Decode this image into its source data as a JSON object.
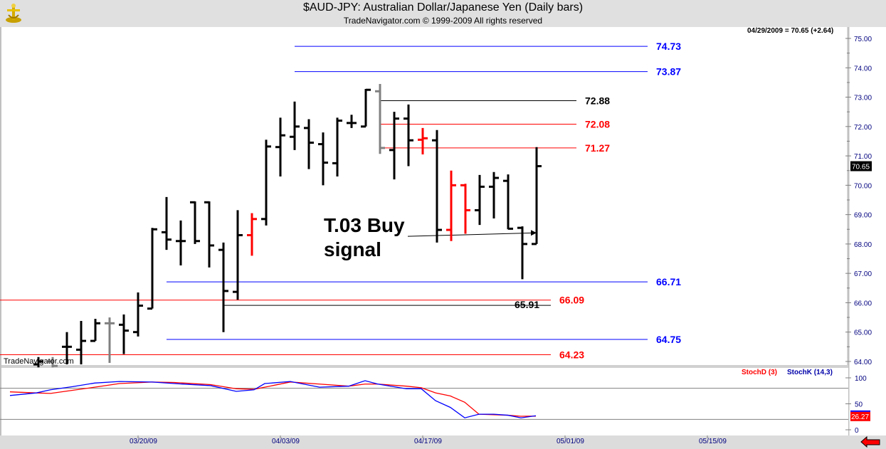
{
  "header": {
    "title": "$AUD-JPY:  Australian Dollar/Japanese Yen  (Daily bars)",
    "subtitle": "TradeNavigator.com © 1999-2009 All rights reserved",
    "last_quote": "04/29/2009 = 70.65 (+2.64)",
    "watermark": "TradeNavigator.com"
  },
  "colors": {
    "up": "#000000",
    "down_red": "#ff0000",
    "gray": "#808080",
    "blue": "#0000ff",
    "red": "#ff0000"
  },
  "chart_data": [
    {
      "type": "ohlc",
      "title": "$AUD-JPY: Australian Dollar/Japanese Yen (Daily bars)",
      "ylim": [
        64.0,
        75.0
      ],
      "yticks": [
        "64.00",
        "65.00",
        "66.00",
        "67.00",
        "68.00",
        "69.00",
        "70.00",
        "71.00",
        "72.00",
        "73.00",
        "74.00",
        "75.00"
      ],
      "x_unit": "bar index",
      "date_ticks": [
        {
          "i": 9,
          "label": "03/20/09"
        },
        {
          "i": 19,
          "label": "04/03/09"
        },
        {
          "i": 29,
          "label": "04/17/09"
        },
        {
          "i": 39,
          "label": "05/01/09"
        },
        {
          "i": 49,
          "label": "05/15/09"
        }
      ],
      "last_price_label": "70.65",
      "bars": [
        {
          "i": 2,
          "o": 63.9,
          "h": 64.15,
          "l": 63.8,
          "c": 64.0,
          "color": "black"
        },
        {
          "i": 3,
          "o": 64.0,
          "h": 64.15,
          "l": 63.8,
          "c": 63.85,
          "color": "gray"
        },
        {
          "i": 4,
          "o": 64.5,
          "h": 65.0,
          "l": 63.9,
          "c": 64.5,
          "color": "black"
        },
        {
          "i": 5,
          "o": 64.4,
          "h": 65.38,
          "l": 63.9,
          "c": 64.7,
          "color": "black"
        },
        {
          "i": 6,
          "o": 64.7,
          "h": 65.45,
          "l": 64.7,
          "c": 65.3,
          "color": "black"
        },
        {
          "i": 7,
          "o": 65.3,
          "h": 65.5,
          "l": 63.95,
          "c": 65.3,
          "color": "gray"
        },
        {
          "i": 8,
          "o": 65.25,
          "h": 65.6,
          "l": 64.25,
          "c": 65.05,
          "color": "black"
        },
        {
          "i": 9,
          "o": 65.0,
          "h": 66.35,
          "l": 64.85,
          "c": 65.9,
          "color": "black"
        },
        {
          "i": 10,
          "o": 65.8,
          "h": 68.55,
          "l": 65.8,
          "c": 68.5,
          "color": "black"
        },
        {
          "i": 11,
          "o": 68.4,
          "h": 69.6,
          "l": 67.8,
          "c": 68.15,
          "color": "black"
        },
        {
          "i": 12,
          "o": 68.1,
          "h": 68.8,
          "l": 67.27,
          "c": 68.1,
          "color": "black"
        },
        {
          "i": 13,
          "o": 69.42,
          "h": 69.45,
          "l": 68.0,
          "c": 68.1,
          "color": "black"
        },
        {
          "i": 14,
          "o": 69.42,
          "h": 69.45,
          "l": 67.2,
          "c": 67.95,
          "color": "black"
        },
        {
          "i": 15,
          "o": 67.8,
          "h": 68.05,
          "l": 65.0,
          "c": 66.4,
          "color": "black"
        },
        {
          "i": 16,
          "o": 66.37,
          "h": 69.15,
          "l": 66.1,
          "c": 68.3,
          "color": "black"
        },
        {
          "i": 17,
          "o": 68.3,
          "h": 69.05,
          "l": 67.6,
          "c": 68.85,
          "color": "red"
        },
        {
          "i": 18,
          "o": 68.85,
          "h": 71.55,
          "l": 68.63,
          "c": 71.32,
          "color": "black"
        },
        {
          "i": 19,
          "o": 71.3,
          "h": 72.3,
          "l": 70.3,
          "c": 71.7,
          "color": "black"
        },
        {
          "i": 20,
          "o": 71.65,
          "h": 72.85,
          "l": 71.2,
          "c": 72.0,
          "color": "black"
        },
        {
          "i": 21,
          "o": 71.95,
          "h": 72.25,
          "l": 70.55,
          "c": 71.45,
          "color": "black"
        },
        {
          "i": 22,
          "o": 71.4,
          "h": 71.8,
          "l": 70.0,
          "c": 70.77,
          "color": "black"
        },
        {
          "i": 23,
          "o": 70.75,
          "h": 72.3,
          "l": 70.3,
          "c": 72.2,
          "color": "black"
        },
        {
          "i": 24,
          "o": 72.12,
          "h": 72.4,
          "l": 71.95,
          "c": 72.12,
          "color": "black"
        },
        {
          "i": 25,
          "o": 72.0,
          "h": 73.28,
          "l": 72.0,
          "c": 73.25,
          "color": "black"
        },
        {
          "i": 26,
          "o": 73.2,
          "h": 73.45,
          "l": 71.07,
          "c": 71.27,
          "color": "gray"
        },
        {
          "i": 27,
          "o": 71.2,
          "h": 72.5,
          "l": 70.2,
          "c": 72.27,
          "color": "black"
        },
        {
          "i": 28,
          "o": 72.27,
          "h": 72.75,
          "l": 70.65,
          "c": 71.53,
          "color": "black"
        },
        {
          "i": 29,
          "o": 71.55,
          "h": 71.95,
          "l": 71.05,
          "c": 71.6,
          "color": "red"
        },
        {
          "i": 30,
          "o": 71.53,
          "h": 71.88,
          "l": 68.05,
          "c": 68.48,
          "color": "black"
        },
        {
          "i": 31,
          "o": 68.48,
          "h": 70.5,
          "l": 68.1,
          "c": 70.0,
          "color": "red"
        },
        {
          "i": 32,
          "o": 70.0,
          "h": 70.05,
          "l": 68.35,
          "c": 69.15,
          "color": "red"
        },
        {
          "i": 33,
          "o": 69.15,
          "h": 70.35,
          "l": 68.65,
          "c": 69.95,
          "color": "black"
        },
        {
          "i": 34,
          "o": 69.95,
          "h": 70.45,
          "l": 68.87,
          "c": 70.25,
          "color": "black"
        },
        {
          "i": 35,
          "o": 70.15,
          "h": 70.37,
          "l": 68.5,
          "c": 68.52,
          "color": "black"
        },
        {
          "i": 36,
          "o": 68.55,
          "h": 68.6,
          "l": 66.8,
          "c": 68.0,
          "color": "black"
        },
        {
          "i": 37,
          "o": 68.0,
          "h": 71.3,
          "l": 68.0,
          "c": 70.65,
          "color": "black"
        }
      ],
      "levels": [
        {
          "value": 74.73,
          "label": "74.73",
          "color": "blue",
          "from": 20,
          "to": 44.8
        },
        {
          "value": 73.87,
          "label": "73.87",
          "color": "blue",
          "from": 20,
          "to": 44.8
        },
        {
          "value": 72.88,
          "label": "72.88",
          "color": "black",
          "from": 26,
          "to": 39.8
        },
        {
          "value": 72.08,
          "label": "72.08",
          "color": "red",
          "from": 26,
          "to": 39.8
        },
        {
          "value": 71.27,
          "label": "71.27",
          "color": "red",
          "from": 26,
          "to": 39.8
        },
        {
          "value": 66.71,
          "label": "66.71",
          "color": "blue",
          "from": 11,
          "to": 44.8
        },
        {
          "value": 66.09,
          "label": "66.09",
          "color": "red",
          "from": -0.7,
          "to": 38
        },
        {
          "value": 65.91,
          "label": "65.91",
          "color": "black",
          "from": 15,
          "to": 38
        },
        {
          "value": 64.75,
          "label": "64.75",
          "color": "blue",
          "from": 11,
          "to": 44.8
        },
        {
          "value": 64.23,
          "label": "64.23",
          "color": "red",
          "from": -0.7,
          "to": 38
        }
      ],
      "annotation": {
        "line1": "T.03 Buy",
        "line2": "signal",
        "arrow_from": {
          "i": 27.95,
          "price": 68.26
        },
        "arrow_to": {
          "i": 37,
          "price": 68.38
        }
      }
    },
    {
      "type": "line",
      "title": "Stochastic",
      "ylim": [
        0,
        100
      ],
      "yticks": [
        "0",
        "50",
        "100"
      ],
      "reference_lines": [
        20,
        80
      ],
      "last_value_label": "26.27",
      "series": [
        {
          "name": "StochD (3)",
          "color": "red",
          "points": [
            [
              0,
              73
            ],
            [
              1.85,
              71
            ],
            [
              2.85,
              70
            ],
            [
              4.4,
              76
            ],
            [
              5.95,
              82
            ],
            [
              7.7,
              89
            ],
            [
              10,
              92
            ],
            [
              11.55,
              91
            ],
            [
              14.1,
              87
            ],
            [
              15.9,
              79
            ],
            [
              17.15,
              78
            ],
            [
              17.9,
              82
            ],
            [
              19.7,
              92
            ],
            [
              21.75,
              88
            ],
            [
              23.8,
              84
            ],
            [
              24.95,
              88
            ],
            [
              25.85,
              88
            ],
            [
              27.85,
              84
            ],
            [
              28.9,
              81
            ],
            [
              29.9,
              71
            ],
            [
              30.95,
              65
            ],
            [
              31.95,
              53
            ],
            [
              32.95,
              30
            ],
            [
              34,
              29
            ],
            [
              35,
              28
            ],
            [
              35.9,
              26
            ],
            [
              36.95,
              26.27
            ]
          ]
        },
        {
          "name": "StochK (14,3)",
          "color": "blue",
          "points": [
            [
              0,
              66
            ],
            [
              1.85,
              71
            ],
            [
              2.85,
              77
            ],
            [
              4.4,
              83
            ],
            [
              5.95,
              90
            ],
            [
              7.7,
              93
            ],
            [
              10,
              92
            ],
            [
              11.55,
              89
            ],
            [
              14.1,
              85
            ],
            [
              15.9,
              74
            ],
            [
              17.15,
              77
            ],
            [
              17.9,
              89
            ],
            [
              19.7,
              93
            ],
            [
              21.75,
              82
            ],
            [
              23.8,
              84
            ],
            [
              24.95,
              94.5
            ],
            [
              25.85,
              88
            ],
            [
              27.85,
              79
            ],
            [
              28.9,
              79
            ],
            [
              29.9,
              56
            ],
            [
              30.95,
              43
            ],
            [
              31.95,
              23
            ],
            [
              32.95,
              30
            ],
            [
              34,
              30
            ],
            [
              35,
              28
            ],
            [
              35.9,
              23
            ],
            [
              36.95,
              27
            ]
          ]
        }
      ]
    }
  ]
}
